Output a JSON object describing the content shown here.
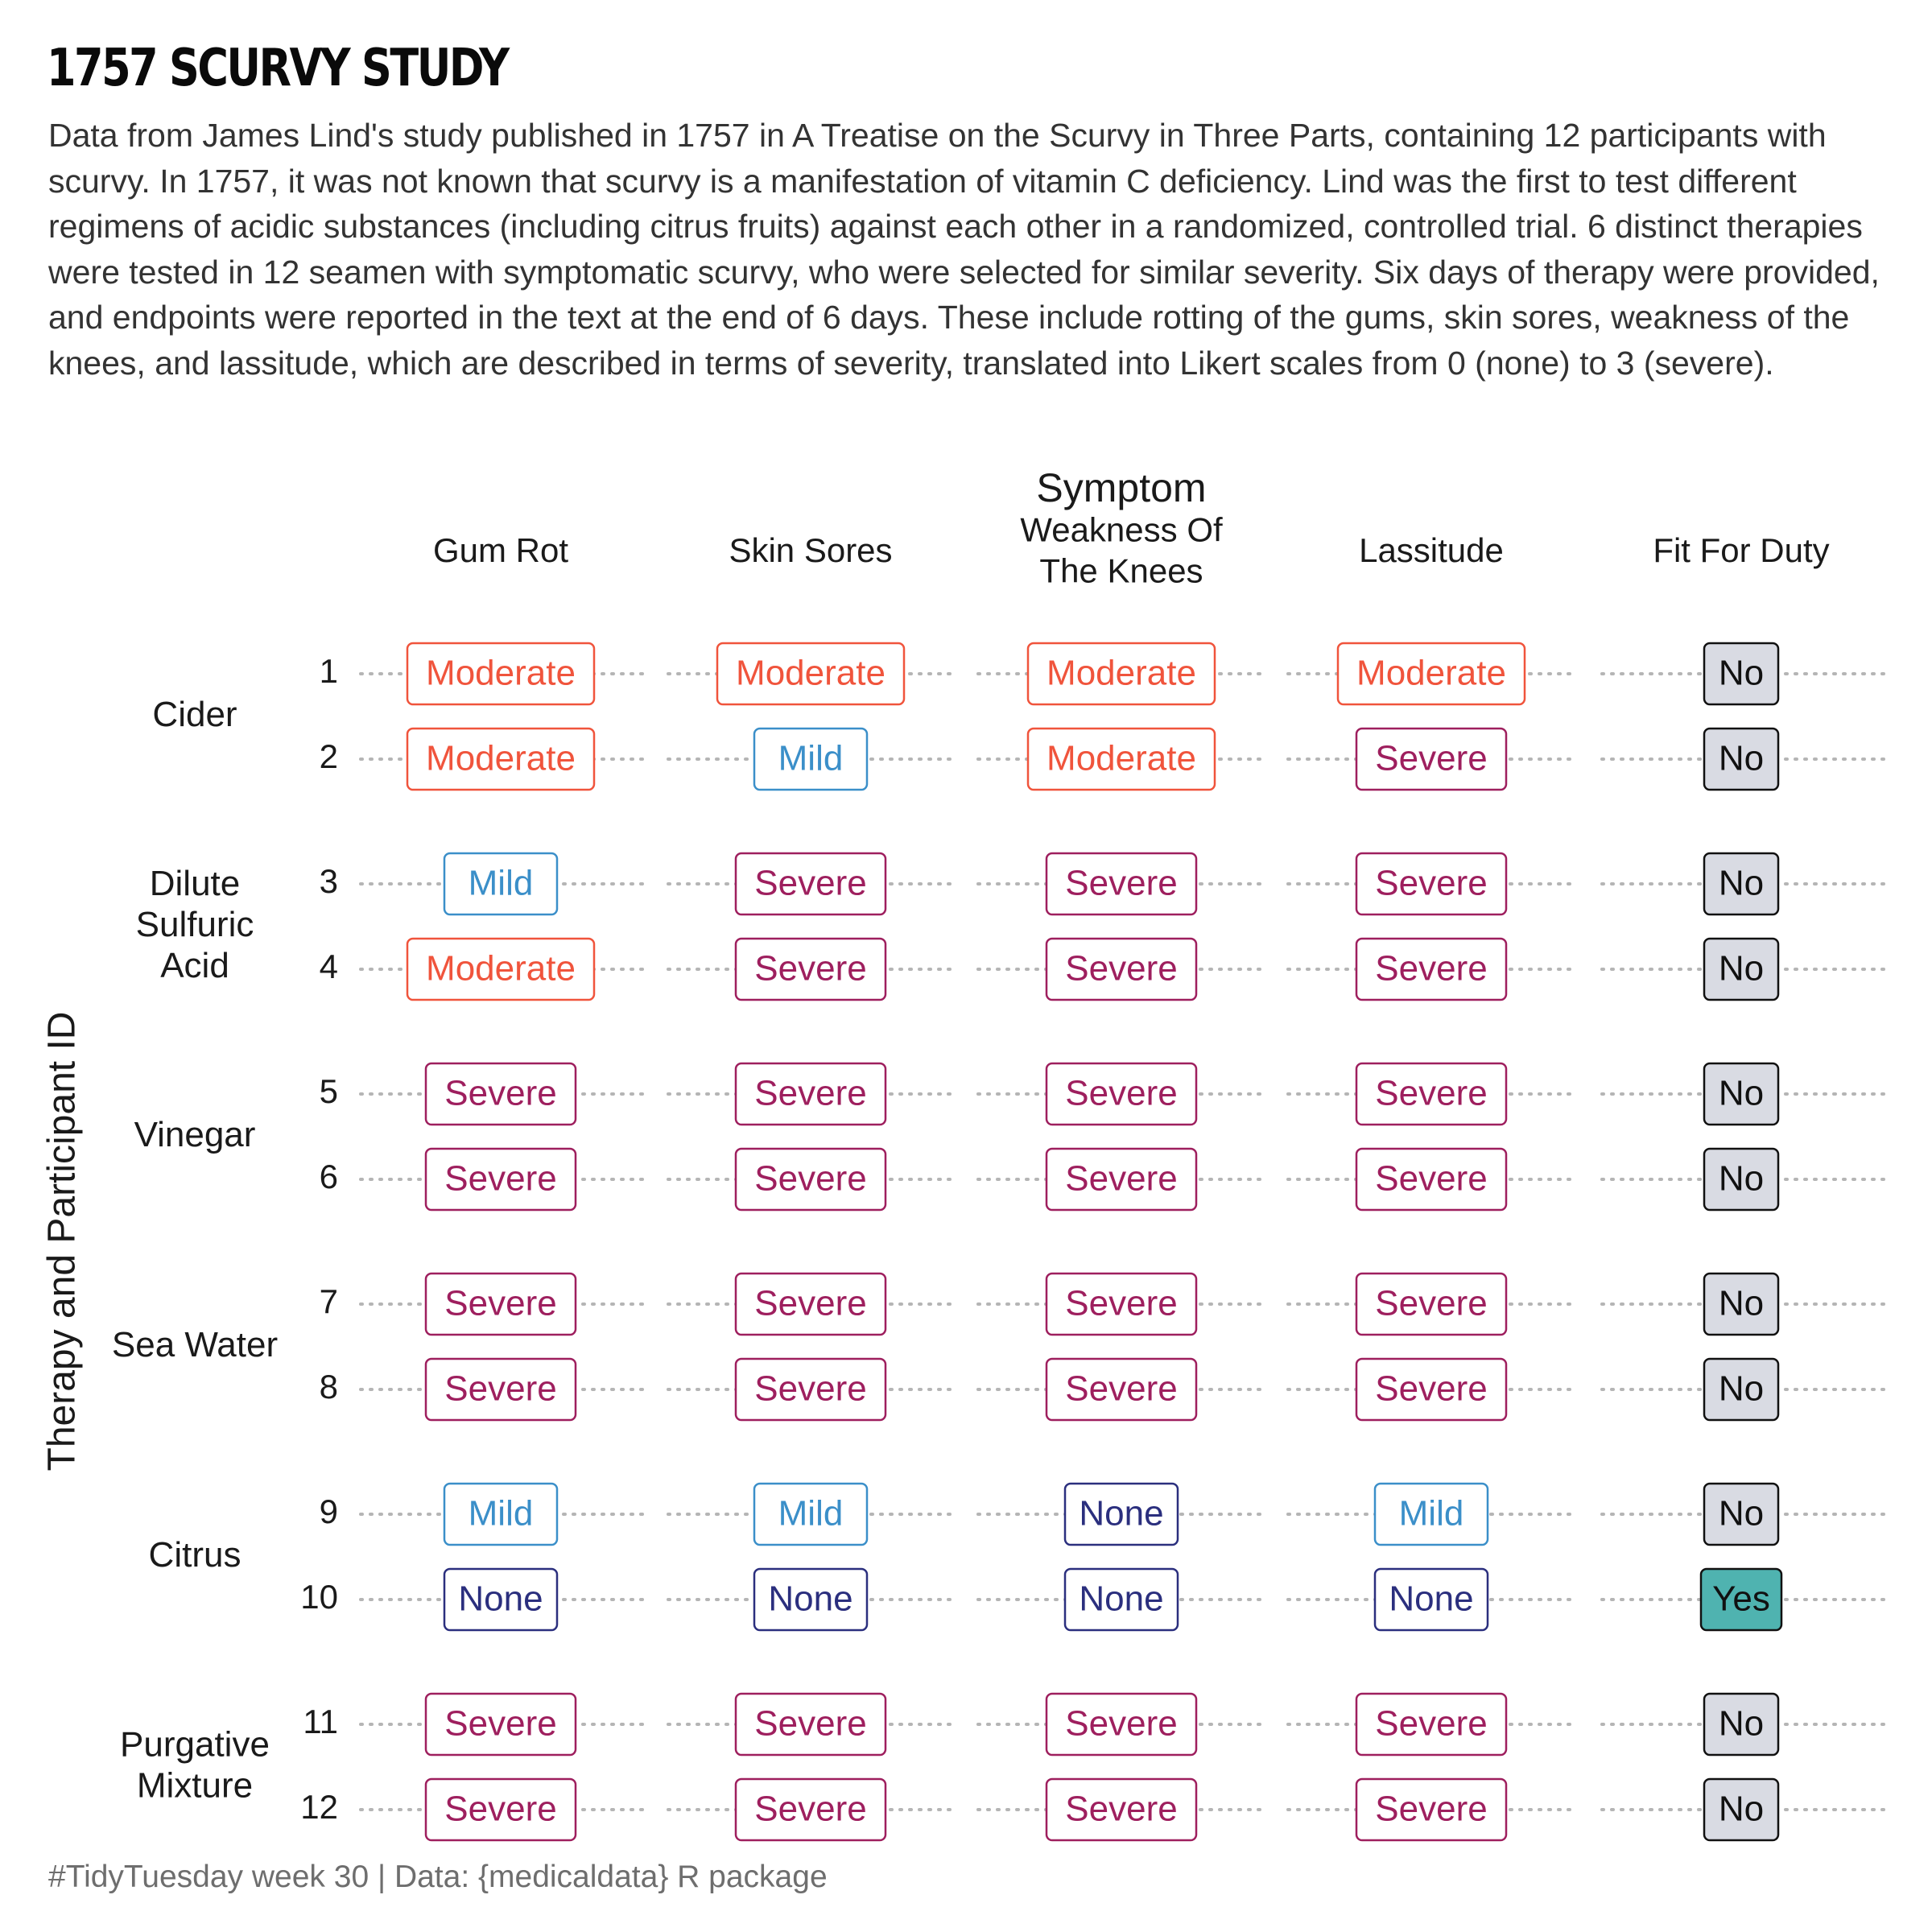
{
  "title": "1757 SCURVY STUDY",
  "subtitle": "Data from James Lind's study published in 1757 in A Treatise on the Scurvy in Three Parts, containing 12 participants with scurvy. In 1757, it was not known that scurvy is a manifestation of vitamin C deficiency. Lind was the first to test different regimens of acidic substances (including citrus fruits) against each other in a randomized, controlled trial. 6 distinct therapies were tested in 12 seamen with symptomatic scurvy, who were selected for similar severity. Six days of therapy were provided, and endpoints were reported in the text at the end of 6 days. These include rotting of the gums, skin sores, weakness of the knees, and lassitude, which are described in terms of severity, translated into Likert scales from 0 (none) to 3 (severe).",
  "caption": "#TidyTuesday week 30  |  Data: {medicaldata} R package",
  "colors": {
    "Severe": "#9e1f5e",
    "Moderate": "#f0543c",
    "Mild": "#3b8fc9",
    "None": "#2b2f7e",
    "No_fill": "#d9dbe3",
    "Yes_fill": "#4fb3b0",
    "dots": "#b5b5b5"
  },
  "chart_data": {
    "type": "table",
    "xlabel": "Symptom",
    "ylabel": "Therapy and Participant ID",
    "columns": [
      "Gum Rot",
      "Skin Sores",
      "Weakness Of\nThe Knees",
      "Lassitude",
      "Fit For Duty"
    ],
    "groups": [
      {
        "therapy": "Cider",
        "rows": [
          {
            "id": "1",
            "values": [
              "Moderate",
              "Moderate",
              "Moderate",
              "Moderate",
              "No"
            ]
          },
          {
            "id": "2",
            "values": [
              "Moderate",
              "Mild",
              "Moderate",
              "Severe",
              "No"
            ]
          }
        ]
      },
      {
        "therapy": "Dilute\nSulfuric\nAcid",
        "rows": [
          {
            "id": "3",
            "values": [
              "Mild",
              "Severe",
              "Severe",
              "Severe",
              "No"
            ]
          },
          {
            "id": "4",
            "values": [
              "Moderate",
              "Severe",
              "Severe",
              "Severe",
              "No"
            ]
          }
        ]
      },
      {
        "therapy": "Vinegar",
        "rows": [
          {
            "id": "5",
            "values": [
              "Severe",
              "Severe",
              "Severe",
              "Severe",
              "No"
            ]
          },
          {
            "id": "6",
            "values": [
              "Severe",
              "Severe",
              "Severe",
              "Severe",
              "No"
            ]
          }
        ]
      },
      {
        "therapy": "Sea Water",
        "rows": [
          {
            "id": "7",
            "values": [
              "Severe",
              "Severe",
              "Severe",
              "Severe",
              "No"
            ]
          },
          {
            "id": "8",
            "values": [
              "Severe",
              "Severe",
              "Severe",
              "Severe",
              "No"
            ]
          }
        ]
      },
      {
        "therapy": "Citrus",
        "rows": [
          {
            "id": "9",
            "values": [
              "Mild",
              "Mild",
              "None",
              "Mild",
              "No"
            ]
          },
          {
            "id": "10",
            "values": [
              "None",
              "None",
              "None",
              "None",
              "Yes"
            ]
          }
        ]
      },
      {
        "therapy": "Purgative\nMixture",
        "rows": [
          {
            "id": "11",
            "values": [
              "Severe",
              "Severe",
              "Severe",
              "Severe",
              "No"
            ]
          },
          {
            "id": "12",
            "values": [
              "Severe",
              "Severe",
              "Severe",
              "Severe",
              "No"
            ]
          }
        ]
      }
    ]
  }
}
